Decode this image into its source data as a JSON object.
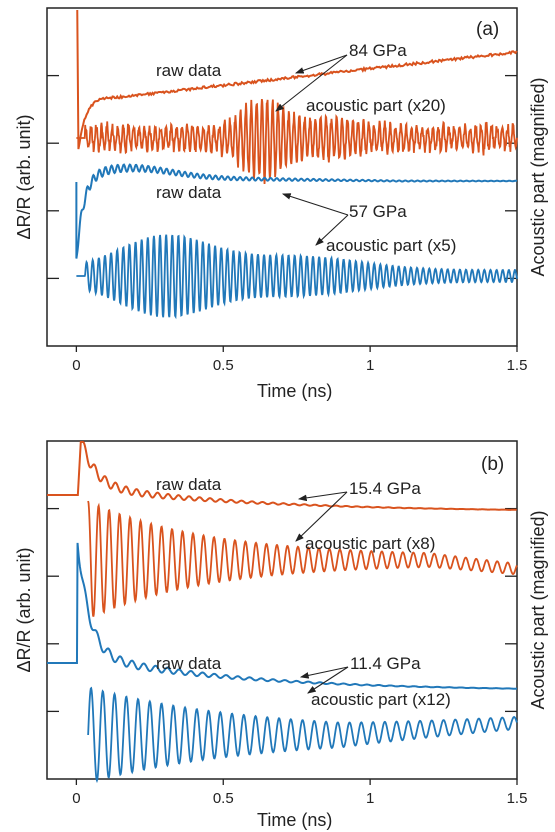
{
  "chart_data": [
    {
      "type": "line",
      "panel_label": "(a)",
      "xlabel": "Time (ns)",
      "ylabel_left": "ΔR/R (arb. unit)",
      "ylabel_right": "Acoustic part (magnified)",
      "xlim": [
        -0.1,
        1.5
      ],
      "x_ticks": [
        "0",
        "0.5",
        "1",
        "1.5"
      ],
      "annotations": {
        "raw1": "raw data",
        "ac1": "acoustic part (x20)",
        "p1": "84 GPa",
        "raw2": "raw data",
        "ac2": "acoustic part (x5)",
        "p2": "57 GPa"
      },
      "colors": {
        "high_pressure": "#d9531e",
        "low_pressure": "#2178b9"
      },
      "series": [
        {
          "pressure": "84 GPa",
          "kind": "raw data",
          "color": "#d9531e",
          "peak_time_ns": 0.0,
          "min_time_ns": 0.15,
          "end_level": "rising"
        },
        {
          "pressure": "84 GPa",
          "kind": "acoustic part",
          "magnification": 20,
          "color": "#d9531e",
          "frequency_GHz_approx": 55,
          "max_amplitude_time_ns": 0.65
        },
        {
          "pressure": "57 GPa",
          "kind": "raw data",
          "color": "#2178b9",
          "min_time_ns": 0.02,
          "max_time_ns": 0.2
        },
        {
          "pressure": "57 GPa",
          "kind": "acoustic part",
          "magnification": 5,
          "color": "#2178b9",
          "frequency_GHz_approx": 48,
          "max_amplitude_time_ns": 0.3
        }
      ]
    },
    {
      "type": "line",
      "panel_label": "(b)",
      "xlabel": "Time (ns)",
      "ylabel_left": "ΔR/R (arb. unit)",
      "ylabel_right": "Acoustic part (magnified)",
      "xlim": [
        -0.1,
        1.5
      ],
      "x_ticks": [
        "0",
        "0.5",
        "1",
        "1.5"
      ],
      "annotations": {
        "raw1": "raw data",
        "ac1": "acoustic part (x8)",
        "p1": "15.4 GPa",
        "raw2": "raw data",
        "ac2": "acoustic part (x12)",
        "p2": "11.4 GPa"
      },
      "colors": {
        "high_pressure": "#d9531e",
        "low_pressure": "#2178b9"
      },
      "series": [
        {
          "pressure": "15.4 GPa",
          "kind": "raw data",
          "color": "#d9531e",
          "peak_time_ns": 0.02
        },
        {
          "pressure": "15.4 GPa",
          "kind": "acoustic part",
          "magnification": 8,
          "color": "#d9531e",
          "frequency_GHz_approx": 28
        },
        {
          "pressure": "11.4 GPa",
          "kind": "raw data",
          "color": "#2178b9",
          "peak_time_ns": 0.01
        },
        {
          "pressure": "11.4 GPa",
          "kind": "acoustic part",
          "magnification": 12,
          "color": "#2178b9",
          "frequency_GHz_approx": 25
        }
      ]
    }
  ]
}
